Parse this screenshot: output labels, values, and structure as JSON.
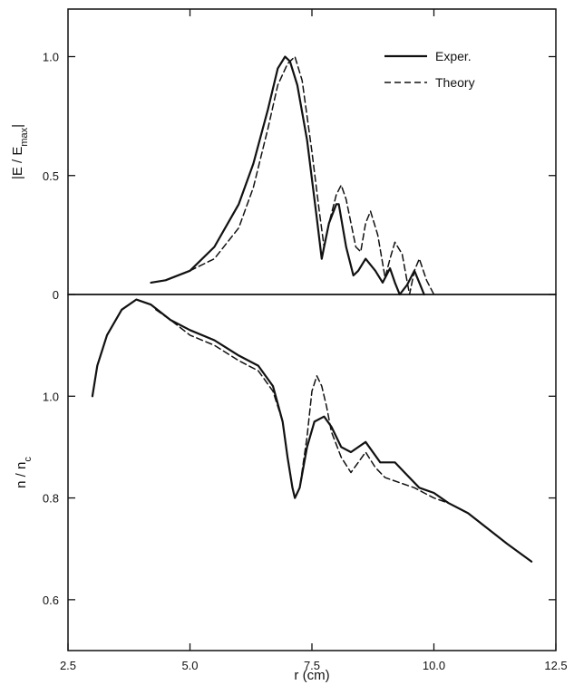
{
  "chart_data": [
    {
      "type": "line",
      "panel": "top",
      "ylabel": "|E / E_max|",
      "ylabel_parts": {
        "main": "|E / E",
        "sub": "max",
        "end": "|"
      },
      "xlim": [
        2.5,
        12.5
      ],
      "ylim": [
        0,
        1.2
      ],
      "yticks": [
        0,
        0.5,
        1.0
      ],
      "ytick_labels": [
        "0",
        "0.5",
        "1.0"
      ],
      "legend": {
        "position": "top-right",
        "entries": [
          "Exper.",
          "Theory"
        ]
      },
      "series": [
        {
          "name": "Exper.",
          "style": "solid",
          "x": [
            4.2,
            4.5,
            5.0,
            5.5,
            6.0,
            6.3,
            6.6,
            6.8,
            6.95,
            7.05,
            7.2,
            7.4,
            7.6,
            7.7,
            7.75,
            7.85,
            8.0,
            8.05,
            8.2,
            8.35,
            8.45,
            8.6,
            8.8,
            8.95,
            9.1,
            9.2,
            9.3,
            9.45,
            9.6,
            9.7,
            9.8
          ],
          "y": [
            0.05,
            0.06,
            0.1,
            0.2,
            0.38,
            0.55,
            0.78,
            0.95,
            1.0,
            0.98,
            0.88,
            0.65,
            0.32,
            0.15,
            0.2,
            0.3,
            0.38,
            0.38,
            0.2,
            0.08,
            0.1,
            0.15,
            0.1,
            0.05,
            0.11,
            0.05,
            0.0,
            0.04,
            0.1,
            0.05,
            0.0
          ]
        },
        {
          "name": "Theory",
          "style": "dashed",
          "x": [
            5.0,
            5.5,
            6.0,
            6.3,
            6.6,
            6.8,
            7.0,
            7.15,
            7.3,
            7.5,
            7.65,
            7.75,
            7.85,
            8.0,
            8.1,
            8.2,
            8.4,
            8.5,
            8.6,
            8.7,
            8.85,
            9.0,
            9.1,
            9.2,
            9.35,
            9.5,
            9.6,
            9.7,
            9.85,
            10.0
          ],
          "y": [
            0.1,
            0.15,
            0.28,
            0.45,
            0.7,
            0.88,
            0.97,
            1.0,
            0.9,
            0.6,
            0.35,
            0.2,
            0.3,
            0.42,
            0.46,
            0.4,
            0.2,
            0.18,
            0.3,
            0.35,
            0.25,
            0.07,
            0.15,
            0.22,
            0.17,
            0.0,
            0.1,
            0.15,
            0.06,
            0.0
          ]
        }
      ]
    },
    {
      "type": "line",
      "panel": "bottom",
      "xlabel": "r (cm)",
      "ylabel": "n / n_c",
      "ylabel_parts": {
        "main": "n / n",
        "sub": "c",
        "end": ""
      },
      "xlim": [
        2.5,
        12.5
      ],
      "ylim": [
        0.5,
        1.2
      ],
      "xticks": [
        2.5,
        5.0,
        7.5,
        10.0,
        12.5
      ],
      "xtick_labels": [
        "2.5",
        "5.0",
        "7.5",
        "10.0",
        "12.5"
      ],
      "yticks": [
        0.6,
        0.8,
        1.0
      ],
      "ytick_labels": [
        "0.6",
        "0.8",
        "1.0"
      ],
      "series": [
        {
          "name": "Exper.",
          "style": "solid",
          "x": [
            3.0,
            3.1,
            3.3,
            3.6,
            3.9,
            4.2,
            4.6,
            5.0,
            5.5,
            6.0,
            6.4,
            6.7,
            6.9,
            7.0,
            7.1,
            7.15,
            7.25,
            7.4,
            7.55,
            7.75,
            7.9,
            8.1,
            8.3,
            8.6,
            8.9,
            9.0,
            9.2,
            9.4,
            9.7,
            10.0,
            10.3,
            10.7,
            11.1,
            11.5,
            12.0
          ],
          "y": [
            1.0,
            1.06,
            1.12,
            1.17,
            1.19,
            1.18,
            1.15,
            1.13,
            1.11,
            1.08,
            1.06,
            1.02,
            0.95,
            0.88,
            0.82,
            0.8,
            0.82,
            0.9,
            0.95,
            0.96,
            0.94,
            0.9,
            0.89,
            0.91,
            0.87,
            0.87,
            0.87,
            0.85,
            0.82,
            0.81,
            0.79,
            0.77,
            0.74,
            0.71,
            0.675
          ]
        },
        {
          "name": "Theory",
          "style": "dashed",
          "x": [
            4.3,
            4.6,
            5.0,
            5.5,
            6.0,
            6.4,
            6.7,
            6.9,
            7.0,
            7.1,
            7.15,
            7.25,
            7.4,
            7.5,
            7.6,
            7.7,
            7.8,
            7.9,
            8.1,
            8.3,
            8.6,
            8.8,
            9.0,
            9.3,
            9.6,
            9.8,
            10.0,
            10.3
          ],
          "y": [
            1.17,
            1.15,
            1.12,
            1.1,
            1.07,
            1.05,
            1.01,
            0.95,
            0.88,
            0.82,
            0.8,
            0.82,
            0.92,
            1.01,
            1.04,
            1.02,
            0.98,
            0.93,
            0.88,
            0.85,
            0.89,
            0.86,
            0.84,
            0.83,
            0.82,
            0.81,
            0.8,
            0.79
          ]
        }
      ]
    }
  ]
}
